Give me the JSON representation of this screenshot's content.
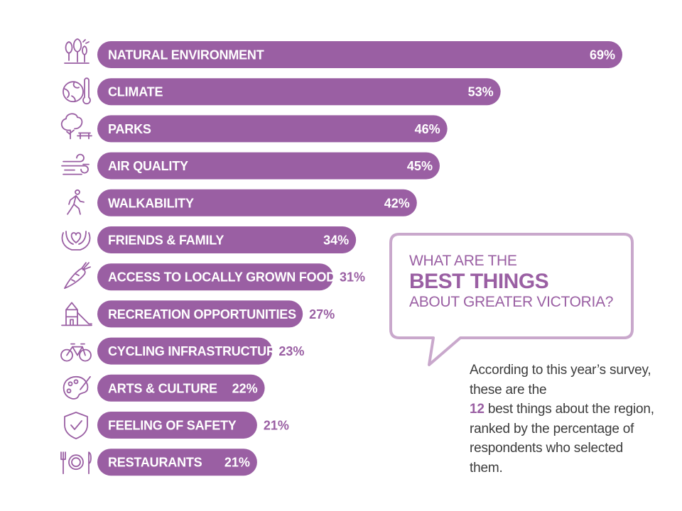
{
  "chart_data": {
    "type": "bar",
    "orientation": "horizontal",
    "categories": [
      "NATURAL ENVIRONMENT",
      "CLIMATE",
      "PARKS",
      "AIR QUALITY",
      "WALKABILITY",
      "FRIENDS & FAMILY",
      "ACCESS TO LOCALLY GROWN FOOD",
      "RECREATION OPPORTUNITIES",
      "CYCLING INFRASTRUCTURE",
      "ARTS & CULTURE",
      "FEELING OF SAFETY",
      "RESTAURANTS"
    ],
    "values": [
      69,
      53,
      46,
      45,
      42,
      34,
      31,
      27,
      23,
      22,
      21,
      21
    ],
    "unit": "%",
    "icons": [
      "trees-icon",
      "globe-thermometer-icon",
      "park-tree-bench-icon",
      "wind-icon",
      "walking-person-icon",
      "hands-heart-icon",
      "carrot-icon",
      "playground-slide-icon",
      "bicycle-icon",
      "art-palette-icon",
      "shield-check-icon",
      "plate-cutlery-icon"
    ],
    "bar_color": "#9a5fa3"
  },
  "callout": {
    "line1": "WHAT ARE THE",
    "line2": "BEST THINGS",
    "line3": "ABOUT GREATER VICTORIA?",
    "border_color": "#c9a8cc"
  },
  "note": {
    "part1": "According to this year’s survey, these are the",
    "number": "12",
    "part2": "best things about the region, ranked by the percentage of respondents who selected them."
  }
}
